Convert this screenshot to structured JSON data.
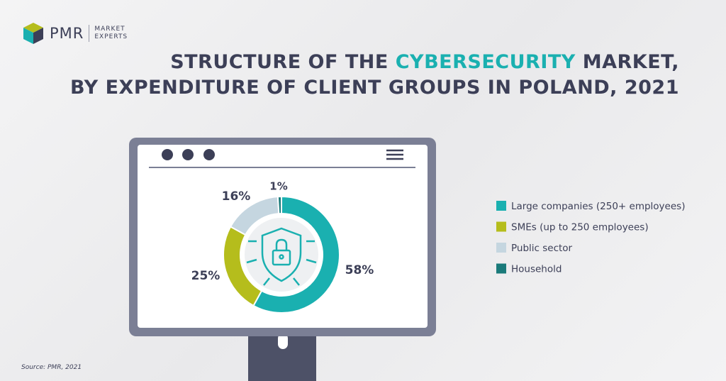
{
  "logo": {
    "name": "PMR",
    "tagline_1": "MARKET",
    "tagline_2": "EXPERTS"
  },
  "chart_data": {
    "type": "donut",
    "title": {
      "start": "STRUCTURE OF THE",
      "highlight": "CYBERSECURITY",
      "end": "MARKET,",
      "line2": "BY EXPENDITURE OF CLIENT GROUPS IN POLAND, 2021"
    },
    "categories": [
      "Large companies (250+ employees)",
      "SMEs (up to 250 employees)",
      "Public sector",
      "Household"
    ],
    "values": [
      58,
      25,
      16,
      1
    ],
    "value_labels": [
      "58%",
      "25%",
      "16%",
      "1%"
    ],
    "colors": [
      "#1ab0b0",
      "#b5bd1c",
      "#c5d6e0",
      "#1a7a7a"
    ]
  },
  "source": "Source: PMR, 2021"
}
